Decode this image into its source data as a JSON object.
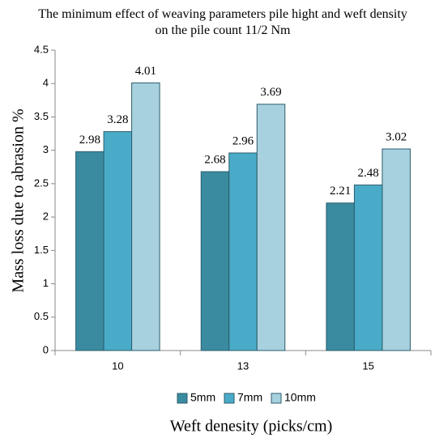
{
  "chart_data": {
    "type": "bar",
    "title": "The minimum effect of weaving parameters pile hight and weft density on the pile count 11/2 Nm",
    "x_label": "Weft denesity (picks/cm)",
    "y_label": "Mass loss due to abrasion %",
    "categories": [
      "10",
      "13",
      "15"
    ],
    "series": [
      {
        "name": "5mm",
        "color": "#3a8ba0",
        "values": [
          2.98,
          2.68,
          2.21
        ]
      },
      {
        "name": "7mm",
        "color": "#4aabc8",
        "values": [
          3.28,
          2.96,
          2.48
        ]
      },
      {
        "name": "10mm",
        "color": "#a8d1df",
        "values": [
          4.01,
          3.69,
          3.02
        ]
      }
    ],
    "ylim": [
      0,
      4.5
    ],
    "yticks": [
      0,
      0.5,
      1,
      1.5,
      2,
      2.5,
      3,
      3.5,
      4,
      4.5
    ],
    "grid": false,
    "legend": "bottom"
  }
}
